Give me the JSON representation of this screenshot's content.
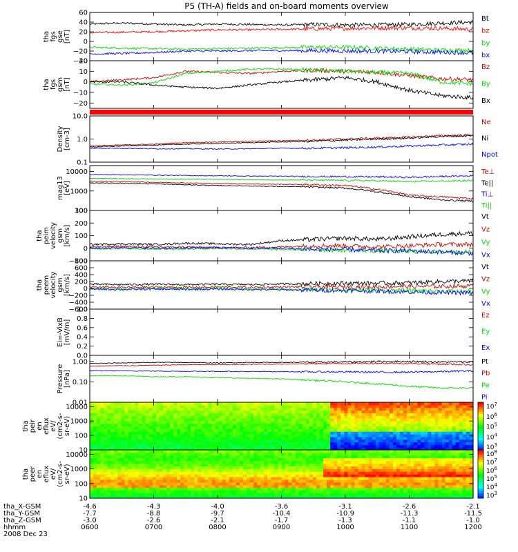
{
  "chart_data": {
    "type": "line",
    "title": "P5 (TH-A) fields and on-board moments overview",
    "date_label": "2008 Dec 23",
    "time_axis": {
      "ticks": [
        "0600",
        "0700",
        "0800",
        "0900",
        "1000",
        "1100",
        "1200"
      ],
      "range": [
        "0600",
        "1200"
      ]
    },
    "ephemeris": [
      {
        "label": "tha_X-GSM",
        "values": [
          "-4.6",
          "-4.3",
          "-4.0",
          "-3.6",
          "-3.1",
          "-2.6",
          "-2.1"
        ]
      },
      {
        "label": "tha_Y-GSM",
        "values": [
          "-7.7",
          "-8.8",
          "-9.7",
          "-10.4",
          "-10.9",
          "-11.3",
          "-11.5"
        ]
      },
      {
        "label": "tha_Z-GSM",
        "values": [
          "-3.0",
          "-2.6",
          "-2.1",
          "-1.7",
          "-1.3",
          "-1.1",
          "-1.0"
        ]
      },
      {
        "label": "hhmm",
        "values": []
      }
    ],
    "panels": [
      {
        "id": "fgs_gse",
        "kind": "line",
        "ylabel": [
          "tha",
          "fgs",
          "gse",
          "[nT]"
        ],
        "ylim": [
          -40,
          60
        ],
        "yscale": "linear",
        "yticks": [
          "60",
          "40",
          "20",
          "0",
          "−20",
          "−40"
        ],
        "series": [
          {
            "name": "Bt",
            "color": "#000000",
            "values": [
              36,
              38,
              36,
              34,
              36,
              35,
              34,
              35,
              34,
              34,
              35,
              38,
              40
            ]
          },
          {
            "name": "bz",
            "color": "#ff0000",
            "values": [
              18,
              19,
              20,
              22,
              24,
              24,
              25,
              26,
              27,
              28,
              28,
              27,
              25
            ]
          },
          {
            "name": "by",
            "color": "#00dd00",
            "values": [
              -12,
              -14,
              -15,
              -16,
              -15,
              -14,
              -13,
              -12,
              -12,
              -14,
              -16,
              -18,
              -18
            ]
          },
          {
            "name": "bx",
            "color": "#0000ff",
            "values": [
              -26,
              -25,
              -23,
              -20,
              -20,
              -19,
              -19,
              -19,
              -20,
              -20,
              -21,
              -22,
              -24
            ]
          }
        ]
      },
      {
        "id": "fgs_gsm",
        "kind": "line",
        "ylabel": [
          "tha",
          "fgs",
          "gsm",
          "[nT]"
        ],
        "ylim": [
          -25,
          20
        ],
        "yscale": "linear",
        "yticks": [
          "20",
          "10",
          "0",
          "−10",
          "−20"
        ],
        "series": [
          {
            "name": "Bz",
            "color": "#cc0000",
            "values": [
              0,
              2,
              4,
              10,
              9,
              8,
              10,
              11,
              10,
              9,
              6,
              3,
              2
            ]
          },
          {
            "name": "By",
            "color": "#00dd00",
            "values": [
              -2,
              -3,
              -1,
              8,
              10,
              12,
              12,
              11,
              10,
              9,
              8,
              0,
              -2
            ]
          },
          {
            "name": "Bx",
            "color": "#000000",
            "values": [
              0,
              0,
              -3,
              -5,
              -6,
              -3,
              0,
              2,
              4,
              0,
              -8,
              -13,
              -15
            ]
          }
        ]
      },
      {
        "id": "density",
        "kind": "line",
        "ylabel": [
          "Density",
          "[cm-3]"
        ],
        "ylim": [
          0.1,
          10
        ],
        "yscale": "log",
        "yticks": [
          "10.0",
          "1.0",
          "0.1"
        ],
        "series": [
          {
            "name": "Ne",
            "color": "#cc0000",
            "values": [
              0.5,
              0.55,
              0.6,
              0.7,
              0.75,
              0.8,
              0.85,
              0.9,
              1.0,
              1.1,
              1.2,
              1.4,
              1.5
            ]
          },
          {
            "name": "Ni",
            "color": "#000000",
            "values": [
              0.45,
              0.5,
              0.55,
              0.6,
              0.65,
              0.7,
              0.75,
              0.8,
              0.9,
              1.0,
              1.1,
              1.3,
              1.4
            ]
          },
          {
            "name": "Npot",
            "color": "#0000ff",
            "values": [
              0.4,
              0.4,
              0.38,
              0.38,
              0.37,
              0.38,
              0.4,
              0.4,
              0.42,
              0.45,
              0.5,
              0.55,
              0.6
            ]
          }
        ]
      },
      {
        "id": "temperature",
        "kind": "line",
        "ylabel": [
          "mag13",
          "[eV]"
        ],
        "ylim": [
          100,
          20000
        ],
        "yscale": "log",
        "yticks": [
          "10000",
          "1000",
          "100"
        ],
        "series": [
          {
            "name": "Te⊥",
            "color": "#cc0000",
            "values": [
              3200,
              3000,
              2800,
              2600,
              2400,
              2300,
              2200,
              2100,
              1900,
              1200,
              600,
              500,
              400
            ]
          },
          {
            "name": "Te||",
            "color": "#000000",
            "values": [
              2600,
              2500,
              2300,
              2100,
              1900,
              1800,
              1700,
              1600,
              1400,
              900,
              500,
              350,
              300
            ]
          },
          {
            "name": "Ti⊥",
            "color": "#0000ff",
            "values": [
              7000,
              6800,
              6500,
              6200,
              6000,
              5800,
              5700,
              5500,
              5400,
              5300,
              5000,
              5500,
              6000
            ]
          },
          {
            "name": "Ti||",
            "color": "#00dd00",
            "values": [
              4500,
              4300,
              4100,
              4000,
              3900,
              3800,
              3700,
              3600,
              3500,
              3300,
              3000,
              3200,
              3400
            ]
          }
        ]
      },
      {
        "id": "peim_velocity",
        "kind": "line",
        "ylabel": [
          "tha",
          "peim",
          "velocity",
          "gsm",
          "[km/s]"
        ],
        "ylim": [
          -100,
          300
        ],
        "yscale": "linear",
        "yticks": [
          "300",
          "200",
          "100",
          "0",
          "−100"
        ],
        "series": [
          {
            "name": "Vt",
            "color": "#000000",
            "values": [
              30,
              35,
              30,
              40,
              35,
              30,
              60,
              70,
              80,
              70,
              90,
              110,
              120
            ]
          },
          {
            "name": "Vz",
            "color": "#cc0000",
            "values": [
              10,
              15,
              10,
              10,
              5,
              5,
              10,
              20,
              20,
              10,
              20,
              30,
              30
            ]
          },
          {
            "name": "Vy",
            "color": "#00dd00",
            "values": [
              -5,
              0,
              -5,
              -5,
              0,
              -5,
              -10,
              -10,
              -15,
              -20,
              -25,
              -30,
              -30
            ]
          },
          {
            "name": "Vx",
            "color": "#0000ff",
            "values": [
              0,
              5,
              0,
              0,
              5,
              0,
              0,
              -10,
              -10,
              -20,
              -20,
              -30,
              -40
            ]
          }
        ]
      },
      {
        "id": "peem_velocity",
        "kind": "line",
        "ylabel": [
          "tha",
          "peem",
          "velocity",
          "gsm",
          "[km/s]"
        ],
        "ylim": [
          -600,
          800
        ],
        "yscale": "linear",
        "yticks": [
          "800",
          "600",
          "400",
          "200",
          "0",
          "−200",
          "−400",
          "−600"
        ],
        "series": [
          {
            "name": "Vt",
            "color": "#000000",
            "values": [
              120,
              110,
              120,
              110,
              120,
              110,
              130,
              140,
              150,
              150,
              160,
              200,
              220
            ]
          },
          {
            "name": "Vz",
            "color": "#cc0000",
            "values": [
              40,
              30,
              40,
              30,
              40,
              30,
              40,
              50,
              40,
              50,
              60,
              60,
              70
            ]
          },
          {
            "name": "Vy",
            "color": "#00dd00",
            "values": [
              0,
              -20,
              0,
              -10,
              0,
              -20,
              -20,
              -30,
              -40,
              -50,
              -60,
              -80,
              -90
            ]
          },
          {
            "name": "Vx",
            "color": "#0000ff",
            "values": [
              -20,
              -30,
              -20,
              -30,
              -20,
              -30,
              -40,
              -50,
              -60,
              -80,
              -100,
              -120,
              -130
            ]
          }
        ]
      },
      {
        "id": "efield",
        "kind": "line",
        "ylabel": [
          "Ei=-VixB",
          "[mV/m]"
        ],
        "ylim": [
          0,
          1
        ],
        "yscale": "linear",
        "yticks": [
          "1.0",
          "0.8",
          "0.6",
          "0.4",
          "0.2",
          "0.0"
        ],
        "series": [
          {
            "name": "Ez",
            "color": "#cc0000",
            "values": []
          },
          {
            "name": "Ey",
            "color": "#00dd00",
            "values": []
          },
          {
            "name": "Ex",
            "color": "#0000ff",
            "values": []
          }
        ]
      },
      {
        "id": "pressure",
        "kind": "line",
        "ylabel": [
          "Pressure",
          "[nPa]"
        ],
        "ylim": [
          0.01,
          2
        ],
        "yscale": "log",
        "yticks": [
          "1.00",
          "0.10",
          "0.01"
        ],
        "series": [
          {
            "name": "Pt",
            "color": "#000000",
            "values": [
              0.8,
              0.85,
              0.9,
              0.9,
              0.85,
              0.9,
              0.9,
              0.92,
              0.95,
              1.0,
              1.0,
              0.95,
              0.95
            ]
          },
          {
            "name": "Pb",
            "color": "#cc0000",
            "values": [
              0.6,
              0.62,
              0.65,
              0.7,
              0.7,
              0.72,
              0.75,
              0.78,
              0.8,
              0.82,
              0.8,
              0.75,
              0.7
            ]
          },
          {
            "name": "Pe",
            "color": "#00dd00",
            "values": [
              0.2,
              0.2,
              0.18,
              0.18,
              0.16,
              0.15,
              0.14,
              0.12,
              0.1,
              0.08,
              0.06,
              0.05,
              0.05
            ]
          },
          {
            "name": "Pi",
            "color": "#0000ff",
            "values": [
              0.35,
              0.35,
              0.34,
              0.33,
              0.33,
              0.32,
              0.32,
              0.31,
              0.31,
              0.3,
              0.3,
              0.32,
              0.35
            ]
          }
        ]
      },
      {
        "id": "peir_spec",
        "kind": "heatmap",
        "ylabel": [
          "tha",
          "peir",
          "en",
          "eflux",
          "eV/",
          "(cm2-s-",
          "sr-eV)"
        ],
        "ylim": [
          10,
          20000
        ],
        "yscale": "log",
        "yticks": [
          "10000",
          "1000",
          "100",
          "10"
        ],
        "colorbar_ticks": [
          "10^7",
          "10^6",
          "10^5",
          "10^4",
          "10^3"
        ]
      },
      {
        "id": "peer_spec",
        "kind": "heatmap",
        "ylabel": [
          "tha",
          "peer",
          "en",
          "eflux",
          "eV/",
          "(cm2-s-",
          "sr-eV)"
        ],
        "ylim": [
          10,
          20000
        ],
        "yscale": "log",
        "yticks": [
          "10000",
          "1000",
          "100",
          "10"
        ],
        "colorbar_ticks": [
          "10^8",
          "10^7",
          "10^6",
          "10^5",
          "10^4",
          "10^3"
        ]
      }
    ]
  }
}
